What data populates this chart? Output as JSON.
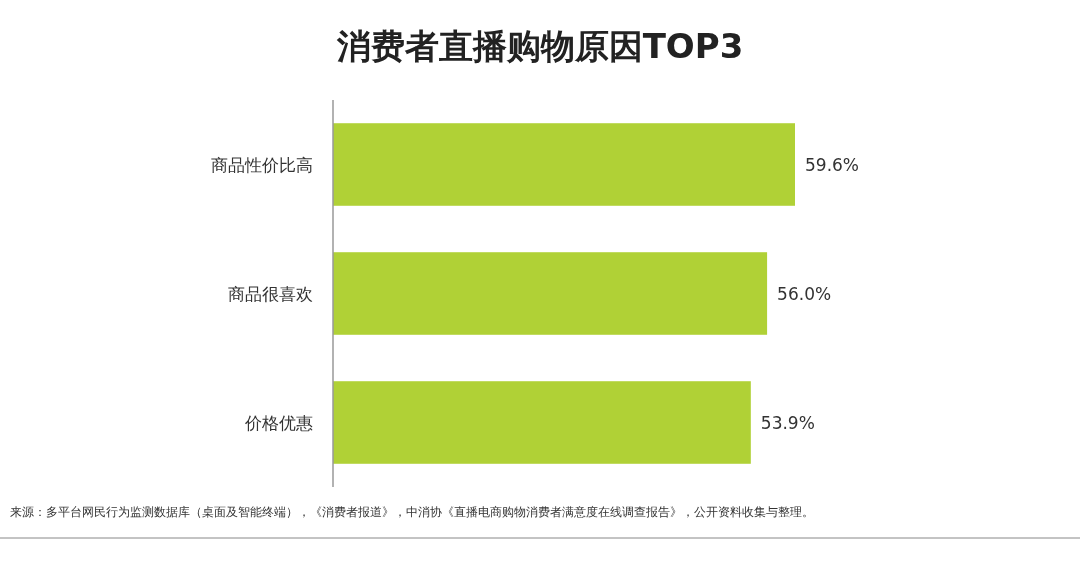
{
  "chart_data": {
    "type": "bar",
    "orientation": "horizontal",
    "title": "消费者直播购物原因TOP3",
    "categories": [
      "商品性价比高",
      "商品很喜欢",
      "价格优惠"
    ],
    "values": [
      59.6,
      56.0,
      53.9
    ],
    "value_labels": [
      "59.6%",
      "56.0%",
      "53.9%"
    ],
    "color": "#b0d136",
    "annotations": [
      "来源：多平台网民行为监测数据库（桌面及智能终端），《消费者报道》，中消协《直播电商购物消费者满意度在线调查报告》，公开资料收集与整理。"
    ]
  }
}
